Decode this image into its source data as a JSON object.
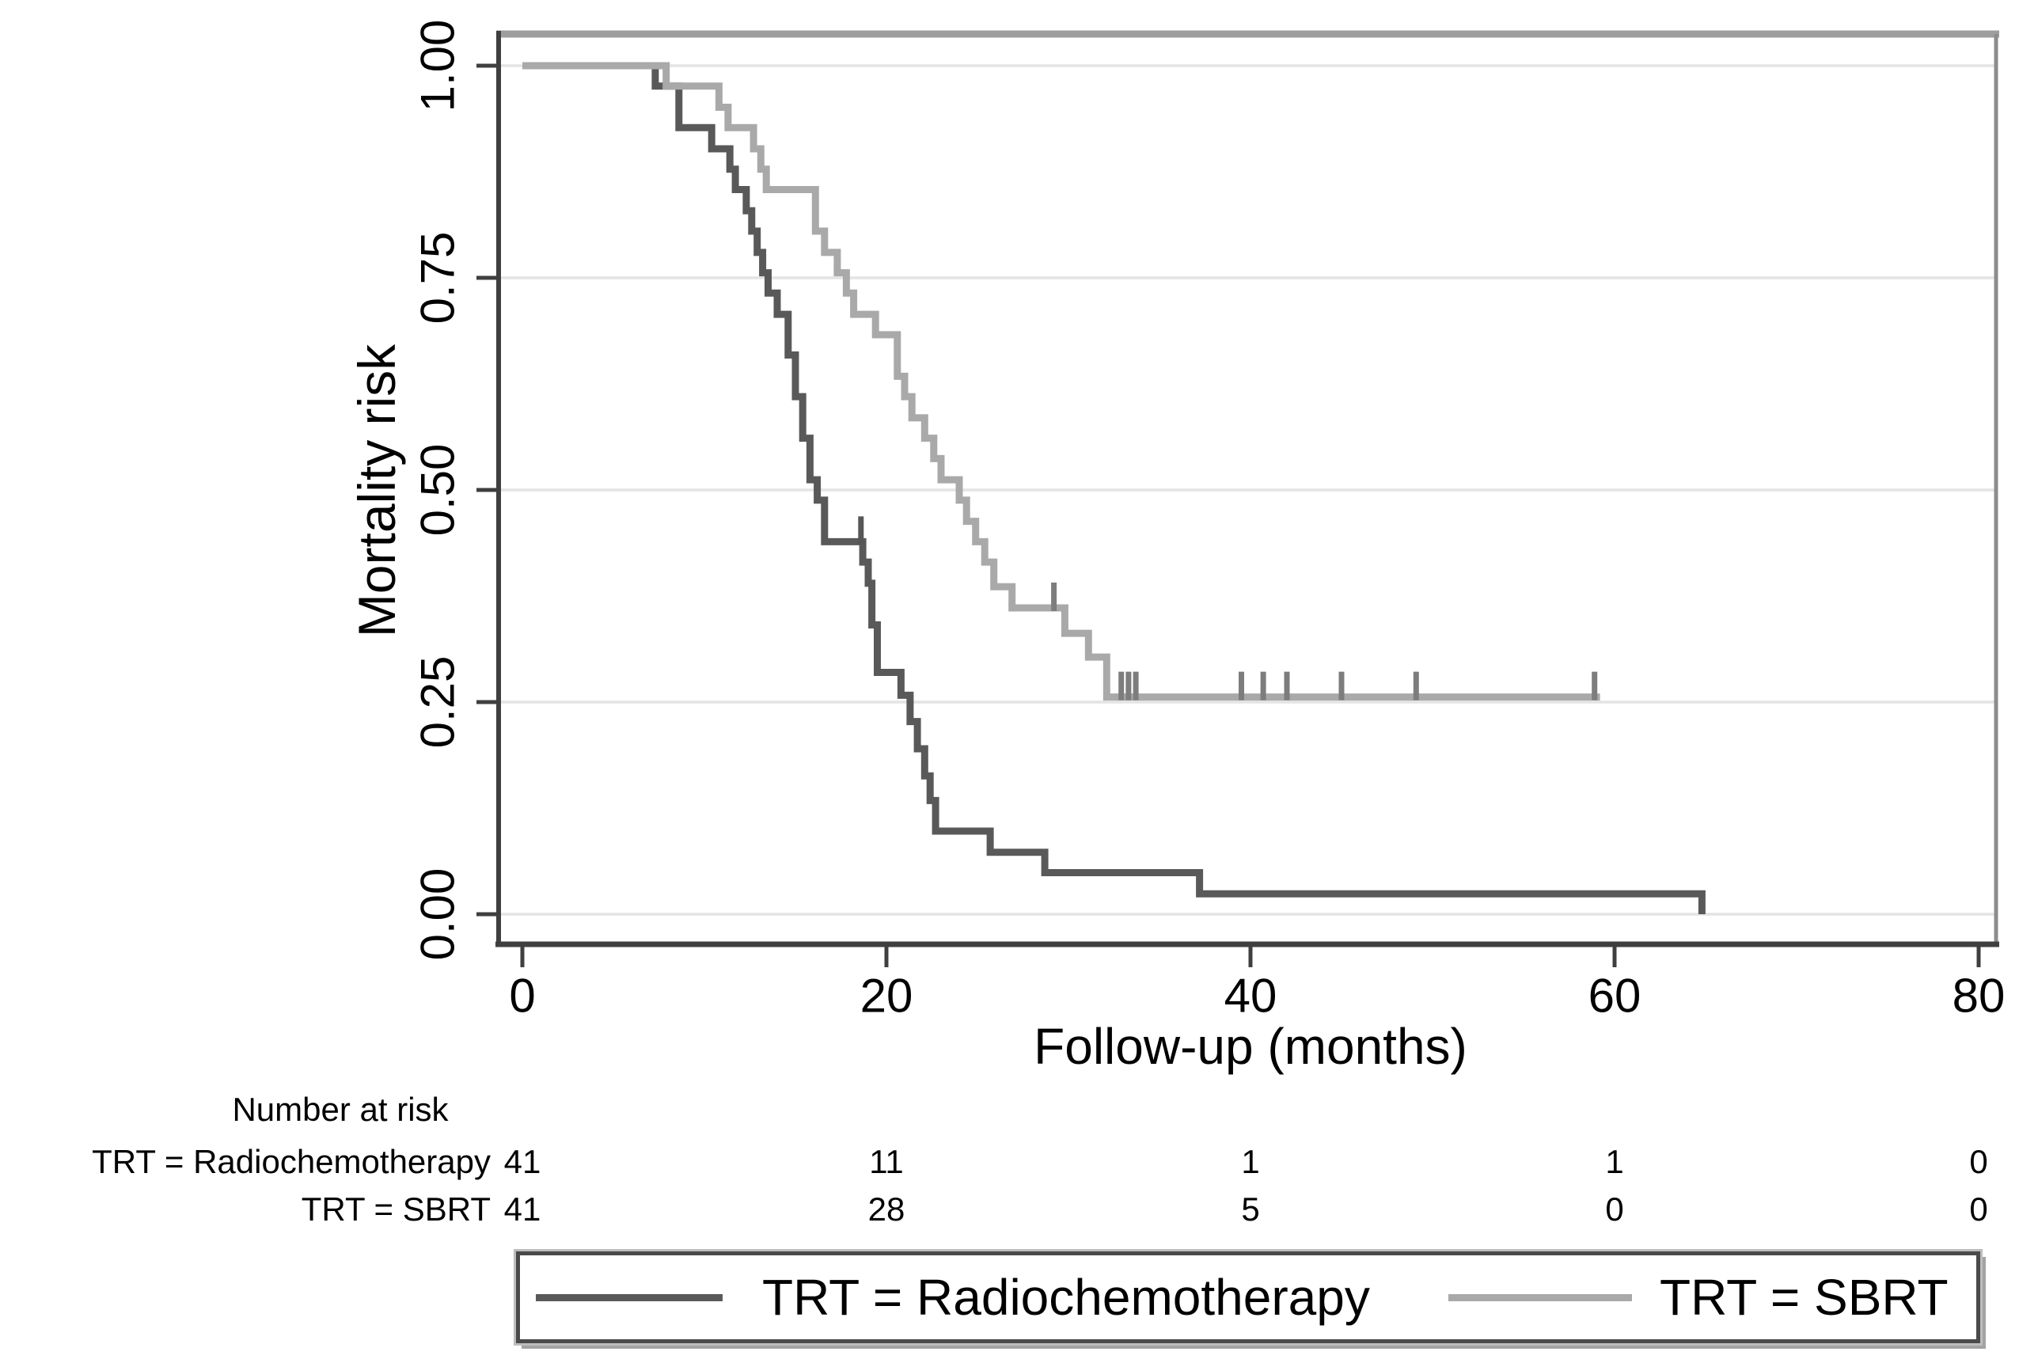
{
  "chart_data": {
    "type": "line",
    "subtype": "kaplan-meier-step",
    "title": "",
    "xlabel": "Follow-up (months)",
    "ylabel": "Mortality risk",
    "xlim": [
      0,
      80
    ],
    "ylim": [
      0.0,
      1.0
    ],
    "xticks": [
      "0",
      "20",
      "40",
      "60",
      "80"
    ],
    "xtick_values": [
      0,
      20,
      40,
      60,
      80
    ],
    "yticks": [
      "0.00",
      "0.25",
      "0.50",
      "0.75",
      "1.00"
    ],
    "ytick_values": [
      0.0,
      0.25,
      0.5,
      0.75,
      1.0
    ],
    "grid": "horizontal",
    "colors": {
      "radiochemotherapy": "#595959",
      "sbrt": "#a9a9a9",
      "gridline": "#e4e4e4",
      "axis": "#3f3f3f",
      "top_border": "#9e9e9e",
      "right_border": "#8c8c8c"
    },
    "series": [
      {
        "name": "TRT = Radiochemotherapy",
        "color": "#595959",
        "start_value": 1.0,
        "steps": [
          [
            7.3,
            0.976
          ],
          [
            8.6,
            0.927
          ],
          [
            10.4,
            0.902
          ],
          [
            11.4,
            0.878
          ],
          [
            11.7,
            0.854
          ],
          [
            12.3,
            0.829
          ],
          [
            12.6,
            0.805
          ],
          [
            12.9,
            0.78
          ],
          [
            13.2,
            0.756
          ],
          [
            13.5,
            0.732
          ],
          [
            14.0,
            0.707
          ],
          [
            14.6,
            0.659
          ],
          [
            15.0,
            0.61
          ],
          [
            15.4,
            0.561
          ],
          [
            15.8,
            0.512
          ],
          [
            16.2,
            0.488
          ],
          [
            16.6,
            0.439
          ],
          [
            18.7,
            0.415
          ],
          [
            19.0,
            0.39
          ],
          [
            19.2,
            0.341
          ],
          [
            19.5,
            0.285
          ],
          [
            20.8,
            0.258
          ],
          [
            21.3,
            0.227
          ],
          [
            21.7,
            0.195
          ],
          [
            22.1,
            0.163
          ],
          [
            22.4,
            0.134
          ],
          [
            22.7,
            0.098
          ],
          [
            25.7,
            0.073
          ],
          [
            28.7,
            0.049
          ],
          [
            37.2,
            0.024
          ],
          [
            64.8,
            0.0
          ]
        ],
        "end_month": 64.8,
        "censors": [
          [
            18.6,
            0.439
          ]
        ]
      },
      {
        "name": "TRT = SBRT",
        "color": "#a9a9a9",
        "start_value": 1.0,
        "steps": [
          [
            7.9,
            0.976
          ],
          [
            10.8,
            0.951
          ],
          [
            11.3,
            0.927
          ],
          [
            12.7,
            0.902
          ],
          [
            13.1,
            0.878
          ],
          [
            13.4,
            0.854
          ],
          [
            16.1,
            0.805
          ],
          [
            16.6,
            0.78
          ],
          [
            17.3,
            0.756
          ],
          [
            17.8,
            0.732
          ],
          [
            18.2,
            0.707
          ],
          [
            19.4,
            0.683
          ],
          [
            20.6,
            0.634
          ],
          [
            21.0,
            0.61
          ],
          [
            21.4,
            0.585
          ],
          [
            22.1,
            0.561
          ],
          [
            22.6,
            0.537
          ],
          [
            23.0,
            0.512
          ],
          [
            24.0,
            0.488
          ],
          [
            24.4,
            0.463
          ],
          [
            24.9,
            0.439
          ],
          [
            25.4,
            0.415
          ],
          [
            25.9,
            0.386
          ],
          [
            26.9,
            0.361
          ],
          [
            29.8,
            0.331
          ],
          [
            31.1,
            0.303
          ],
          [
            32.1,
            0.256
          ]
        ],
        "end_month": 59.2,
        "censors": [
          [
            29.2,
            0.361
          ],
          [
            32.9,
            0.256
          ],
          [
            33.3,
            0.256
          ],
          [
            33.7,
            0.256
          ],
          [
            39.5,
            0.256
          ],
          [
            40.7,
            0.256
          ],
          [
            42.0,
            0.256
          ],
          [
            45.0,
            0.256
          ],
          [
            49.1,
            0.256
          ],
          [
            58.9,
            0.256
          ]
        ]
      }
    ],
    "number_at_risk": {
      "header": "Number at risk",
      "columns": [
        0,
        20,
        40,
        60,
        80
      ],
      "rows": [
        {
          "label": "TRT = Radiochemotherapy",
          "values": [
            "41",
            "11",
            "1",
            "1",
            "0"
          ]
        },
        {
          "label": "TRT = SBRT",
          "values": [
            "41",
            "28",
            "5",
            "0",
            "0"
          ]
        }
      ]
    },
    "legend": {
      "position": "bottom",
      "entries": [
        "TRT = Radiochemotherapy",
        "TRT = SBRT"
      ]
    }
  }
}
